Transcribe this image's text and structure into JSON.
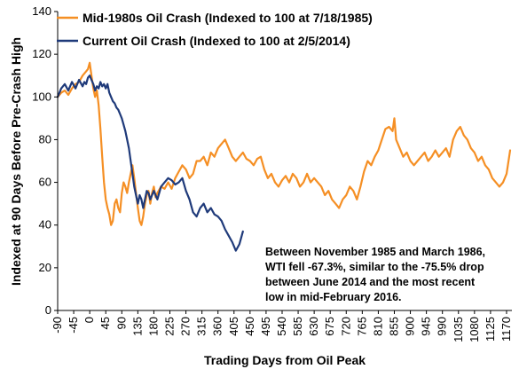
{
  "chart_data": {
    "type": "line",
    "xlabel": "Trading Days from Oil Peak",
    "ylabel": "Indexed at 90 Days Before Pre-Crash High",
    "xlim": [
      -90,
      1185
    ],
    "ylim": [
      0,
      140
    ],
    "xticks": [
      -90,
      -45,
      0,
      45,
      90,
      135,
      180,
      225,
      270,
      315,
      360,
      405,
      450,
      495,
      540,
      585,
      630,
      675,
      720,
      765,
      810,
      855,
      900,
      945,
      990,
      1035,
      1080,
      1125,
      1170
    ],
    "yticks": [
      0,
      20,
      40,
      60,
      80,
      100,
      120,
      140
    ],
    "legend_position": "top-left",
    "series": [
      {
        "name": "Mid-1980s Oil Crash (Indexed to 100 at 7/18/1985)",
        "color": "#F58F24",
        "x": [
          -90,
          -80,
          -70,
          -60,
          -50,
          -40,
          -30,
          -20,
          -10,
          -5,
          0,
          5,
          10,
          15,
          20,
          25,
          30,
          35,
          40,
          45,
          50,
          55,
          60,
          65,
          70,
          75,
          80,
          85,
          90,
          95,
          100,
          105,
          110,
          115,
          120,
          125,
          130,
          135,
          140,
          145,
          150,
          155,
          160,
          165,
          170,
          175,
          180,
          185,
          190,
          200,
          210,
          220,
          230,
          240,
          250,
          260,
          270,
          280,
          290,
          300,
          310,
          320,
          330,
          340,
          350,
          360,
          370,
          380,
          390,
          400,
          410,
          420,
          430,
          440,
          450,
          460,
          470,
          480,
          490,
          500,
          510,
          520,
          530,
          540,
          550,
          560,
          570,
          580,
          590,
          600,
          610,
          620,
          630,
          640,
          650,
          660,
          670,
          680,
          690,
          700,
          710,
          720,
          730,
          740,
          750,
          760,
          770,
          780,
          790,
          800,
          810,
          820,
          830,
          840,
          850,
          855,
          860,
          870,
          880,
          890,
          900,
          910,
          920,
          930,
          940,
          950,
          960,
          970,
          980,
          990,
          1000,
          1010,
          1020,
          1030,
          1040,
          1050,
          1060,
          1070,
          1080,
          1090,
          1100,
          1110,
          1120,
          1130,
          1140,
          1150,
          1160,
          1170,
          1180
        ],
        "values": [
          100,
          102,
          103,
          101,
          104,
          106,
          107,
          110,
          112,
          113,
          116,
          110,
          104,
          100,
          103,
          96,
          85,
          72,
          60,
          52,
          48,
          45,
          40,
          42,
          50,
          52,
          48,
          46,
          55,
          60,
          58,
          55,
          60,
          64,
          68,
          62,
          55,
          48,
          42,
          40,
          44,
          50,
          54,
          56,
          50,
          55,
          58,
          53,
          55,
          58,
          57,
          60,
          57,
          62,
          65,
          68,
          66,
          62,
          64,
          70,
          70,
          72,
          68,
          74,
          72,
          76,
          78,
          80,
          76,
          72,
          70,
          72,
          74,
          71,
          70,
          68,
          71,
          72,
          66,
          62,
          64,
          60,
          58,
          61,
          63,
          60,
          64,
          62,
          58,
          60,
          64,
          60,
          62,
          60,
          58,
          54,
          56,
          52,
          50,
          48,
          52,
          54,
          58,
          56,
          52,
          58,
          65,
          70,
          68,
          72,
          75,
          80,
          85,
          86,
          84,
          90,
          80,
          76,
          72,
          74,
          70,
          68,
          70,
          72,
          74,
          70,
          72,
          75,
          72,
          74,
          76,
          72,
          80,
          84,
          86,
          82,
          80,
          76,
          74,
          70,
          72,
          68,
          66,
          62,
          60,
          58,
          60,
          64,
          75
        ]
      },
      {
        "name": "Current Oil Crash (Indexed to 100 at 2/5/2014)",
        "color": "#1F3A7A",
        "x": [
          -90,
          -80,
          -70,
          -60,
          -50,
          -40,
          -30,
          -20,
          -15,
          -10,
          -5,
          0,
          5,
          10,
          15,
          20,
          25,
          30,
          35,
          40,
          45,
          50,
          55,
          60,
          65,
          70,
          75,
          80,
          85,
          90,
          95,
          100,
          105,
          110,
          115,
          120,
          125,
          130,
          135,
          140,
          145,
          150,
          155,
          160,
          165,
          170,
          175,
          180,
          190,
          200,
          210,
          220,
          230,
          240,
          250,
          260,
          270,
          280,
          290,
          300,
          310,
          320,
          330,
          340,
          350,
          360,
          370,
          380,
          390,
          400,
          410,
          420,
          430
        ],
        "values": [
          100,
          104,
          106,
          103,
          107,
          104,
          108,
          105,
          107,
          106,
          109,
          110,
          108,
          106,
          103,
          105,
          104,
          107,
          105,
          106,
          104,
          106,
          102,
          100,
          98,
          97,
          95,
          94,
          92,
          90,
          87,
          84,
          80,
          76,
          70,
          64,
          58,
          54,
          50,
          54,
          52,
          48,
          52,
          56,
          55,
          52,
          54,
          56,
          52,
          58,
          60,
          62,
          61,
          59,
          60,
          62,
          56,
          52,
          46,
          44,
          48,
          50,
          46,
          48,
          45,
          44,
          42,
          38,
          35,
          32,
          28,
          31,
          37
        ]
      }
    ],
    "annotation": [
      "Between November 1985 and March 1986,",
      "WTI fell -67.3%, similar to the -75.5% drop",
      "between June 2014 and the most recent",
      "low in mid-February 2016."
    ]
  }
}
